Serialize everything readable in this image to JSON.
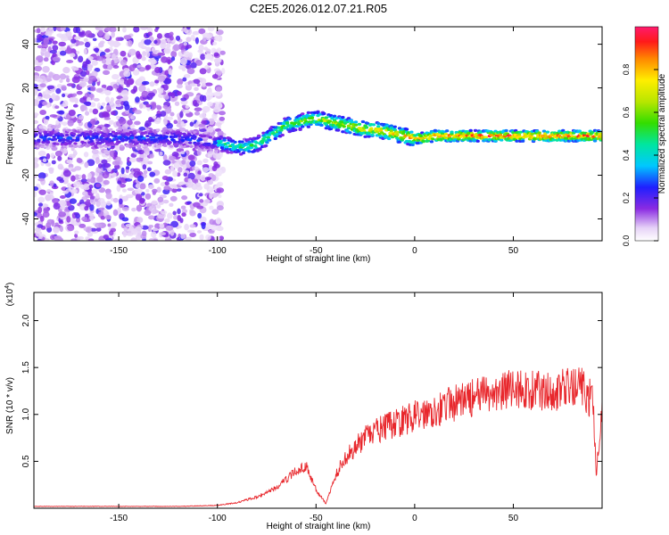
{
  "title": "C2E5.2026.012.07.21.R05",
  "chart_data": [
    {
      "type": "heatmap",
      "xlabel": "Height of straight line (km)",
      "ylabel": "Frequency (Hz)",
      "xlim": [
        -193,
        95
      ],
      "ylim": [
        -50,
        48
      ],
      "xticks": [
        "-150",
        "-100",
        "-50",
        "0",
        "50"
      ],
      "xtick_values": [
        -150,
        -100,
        -50,
        0,
        50
      ],
      "yticks": [
        "-40",
        "-20",
        "0",
        "20",
        "40"
      ],
      "ytick_values": [
        -40,
        -20,
        0,
        20,
        40
      ],
      "ridge": {
        "x": [
          -193,
          -180,
          -160,
          -140,
          -120,
          -100,
          -95,
          -90,
          -85,
          -80,
          -75,
          -70,
          -65,
          -60,
          -55,
          -50,
          -45,
          -40,
          -35,
          -30,
          -25,
          -20,
          -15,
          -10,
          -5,
          0,
          5,
          10,
          20,
          30,
          40,
          50,
          60,
          70,
          80,
          90,
          95
        ],
        "y": [
          -3,
          -3,
          -3,
          -3,
          -3,
          -5,
          -6,
          -7,
          -7,
          -6,
          -3,
          0,
          3,
          4,
          5,
          6,
          5,
          4,
          3,
          2,
          1,
          1,
          0,
          -1,
          -2,
          -3,
          -3,
          -2,
          -2,
          -2,
          -2,
          -2,
          -2,
          -2,
          -2,
          -2,
          -2
        ]
      },
      "colorbar": {
        "label": "Normalized spectral amplitude",
        "ticks": [
          "0.0",
          "0.2",
          "0.4",
          "0.6",
          "0.8"
        ],
        "tick_values": [
          0.0,
          0.2,
          0.4,
          0.6,
          0.8
        ],
        "range": [
          0,
          1
        ]
      }
    },
    {
      "type": "line",
      "xlabel": "Height of straight line (km)",
      "ylabel": "SNR (10 * v/v)",
      "scale_label": "(x10",
      "scale_exp": "4",
      "xlim": [
        -193,
        95
      ],
      "ylim": [
        0,
        2.3
      ],
      "xticks": [
        "-150",
        "-100",
        "-50",
        "0",
        "50"
      ],
      "xtick_values": [
        -150,
        -100,
        -50,
        0,
        50
      ],
      "yticks": [
        "0.5",
        "1.0",
        "1.5",
        "2.0"
      ],
      "ytick_values": [
        0.5,
        1.0,
        1.5,
        2.0
      ],
      "series": [
        {
          "color": "#e8272c",
          "envelope_x": [
            -193,
            -120,
            -100,
            -90,
            -80,
            -70,
            -60,
            -55,
            -50,
            -45,
            -40,
            -35,
            -30,
            -25,
            -20,
            -10,
            0,
            10,
            20,
            30,
            40,
            50,
            60,
            70,
            80,
            85,
            88,
            90,
            92,
            95
          ],
          "envelope_y": [
            0.02,
            0.02,
            0.03,
            0.06,
            0.12,
            0.22,
            0.4,
            0.45,
            0.2,
            0.05,
            0.35,
            0.55,
            0.65,
            0.75,
            0.82,
            0.9,
            0.98,
            1.05,
            1.12,
            1.18,
            1.22,
            1.28,
            1.25,
            1.25,
            1.28,
            1.3,
            1.1,
            1.4,
            0.35,
            1.1
          ]
        }
      ]
    }
  ]
}
